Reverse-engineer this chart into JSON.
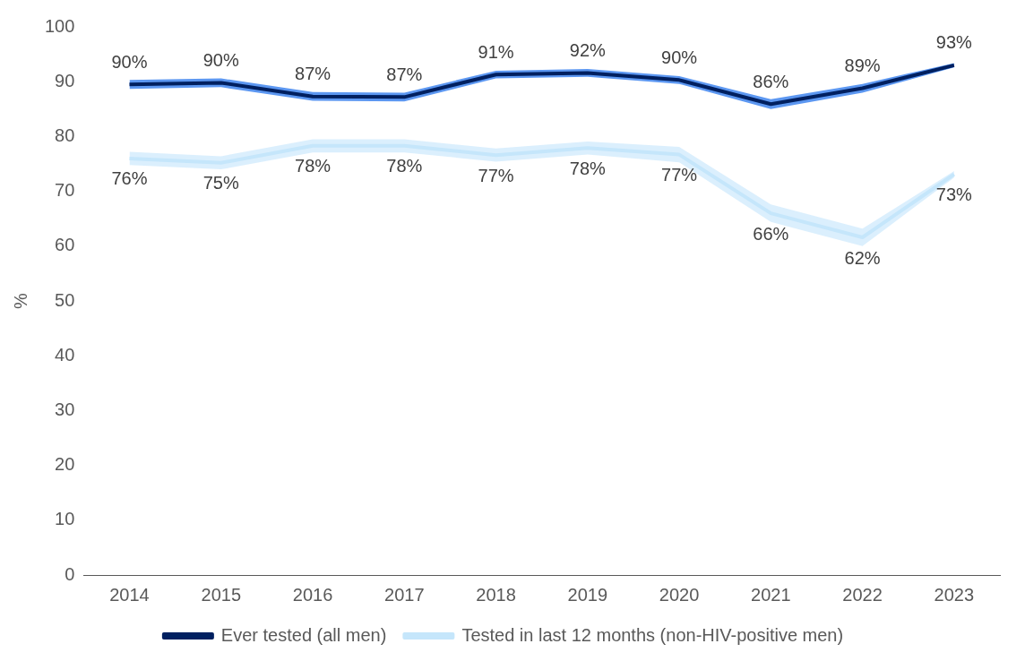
{
  "chart_data": {
    "type": "line",
    "ylabel": "%",
    "categories": [
      "2014",
      "2015",
      "2016",
      "2017",
      "2018",
      "2019",
      "2020",
      "2021",
      "2022",
      "2023"
    ],
    "series": [
      {
        "name": "Ever tested (all men)",
        "color": "#002060",
        "values": [
          89.5,
          89.8,
          87.3,
          87.2,
          91.3,
          91.6,
          90.3,
          85.9,
          88.8,
          93
        ],
        "lower": [
          88.7,
          89,
          86.5,
          86.4,
          90.6,
          90.9,
          89.6,
          85,
          88,
          92.6
        ],
        "upper": [
          90.3,
          90.6,
          88.1,
          88,
          92,
          92.3,
          91,
          86.8,
          89.6,
          93.4
        ],
        "value_labels": [
          "90%",
          "90%",
          "87%",
          "87%",
          "91%",
          "92%",
          "90%",
          "86%",
          "89%",
          "93%"
        ]
      },
      {
        "name": "Tested in last 12 months (non-HIV-positive men)",
        "color": "#c5e6fb",
        "values": [
          76,
          75.2,
          78.3,
          78.3,
          76.6,
          77.9,
          76.7,
          66,
          61.6,
          73.1
        ],
        "lower": [
          74.8,
          74,
          77.1,
          77.1,
          75.4,
          76.7,
          75.3,
          64.4,
          60,
          72.5
        ],
        "upper": [
          77.2,
          76.4,
          79.5,
          79.5,
          77.8,
          79.1,
          78.1,
          67.6,
          63.2,
          73.7
        ],
        "value_labels": [
          "76%",
          "75%",
          "78%",
          "78%",
          "77%",
          "78%",
          "77%",
          "66%",
          "62%",
          "73%"
        ]
      }
    ],
    "ylim": [
      0,
      100
    ],
    "yticks": [
      0,
      10,
      20,
      30,
      40,
      50,
      60,
      70,
      80,
      90,
      100
    ],
    "grid": false,
    "legend": "bottom",
    "marker": "none",
    "line_style": "solid"
  }
}
